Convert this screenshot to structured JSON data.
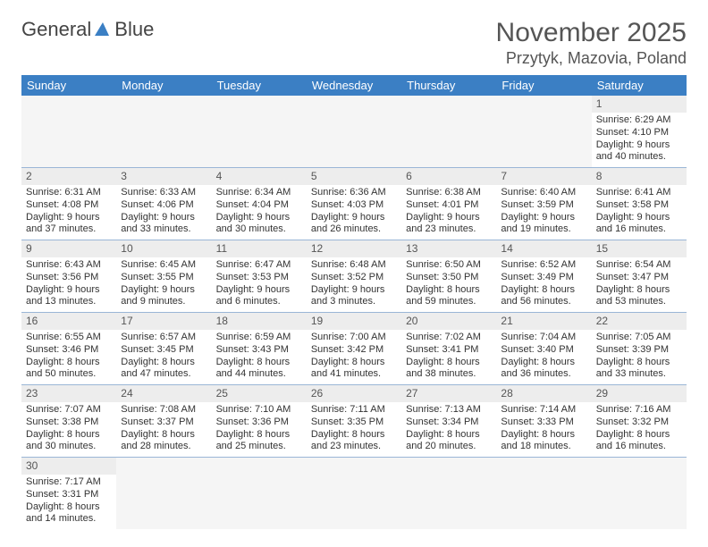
{
  "logo": {
    "word1": "General",
    "word2": "Blue",
    "shape_color": "#3b7fc4"
  },
  "header": {
    "month_title": "November 2025",
    "location": "Przytyk, Mazovia, Poland"
  },
  "colors": {
    "header_bg": "#3b7fc4",
    "header_fg": "#ffffff",
    "row_border": "#9ab6d6",
    "dayhead_bg": "#ededed"
  },
  "day_names": [
    "Sunday",
    "Monday",
    "Tuesday",
    "Wednesday",
    "Thursday",
    "Friday",
    "Saturday"
  ],
  "weeks": [
    [
      null,
      null,
      null,
      null,
      null,
      null,
      {
        "n": "1",
        "sr": "Sunrise: 6:29 AM",
        "ss": "Sunset: 4:10 PM",
        "dl": "Daylight: 9 hours and 40 minutes."
      }
    ],
    [
      {
        "n": "2",
        "sr": "Sunrise: 6:31 AM",
        "ss": "Sunset: 4:08 PM",
        "dl": "Daylight: 9 hours and 37 minutes."
      },
      {
        "n": "3",
        "sr": "Sunrise: 6:33 AM",
        "ss": "Sunset: 4:06 PM",
        "dl": "Daylight: 9 hours and 33 minutes."
      },
      {
        "n": "4",
        "sr": "Sunrise: 6:34 AM",
        "ss": "Sunset: 4:04 PM",
        "dl": "Daylight: 9 hours and 30 minutes."
      },
      {
        "n": "5",
        "sr": "Sunrise: 6:36 AM",
        "ss": "Sunset: 4:03 PM",
        "dl": "Daylight: 9 hours and 26 minutes."
      },
      {
        "n": "6",
        "sr": "Sunrise: 6:38 AM",
        "ss": "Sunset: 4:01 PM",
        "dl": "Daylight: 9 hours and 23 minutes."
      },
      {
        "n": "7",
        "sr": "Sunrise: 6:40 AM",
        "ss": "Sunset: 3:59 PM",
        "dl": "Daylight: 9 hours and 19 minutes."
      },
      {
        "n": "8",
        "sr": "Sunrise: 6:41 AM",
        "ss": "Sunset: 3:58 PM",
        "dl": "Daylight: 9 hours and 16 minutes."
      }
    ],
    [
      {
        "n": "9",
        "sr": "Sunrise: 6:43 AM",
        "ss": "Sunset: 3:56 PM",
        "dl": "Daylight: 9 hours and 13 minutes."
      },
      {
        "n": "10",
        "sr": "Sunrise: 6:45 AM",
        "ss": "Sunset: 3:55 PM",
        "dl": "Daylight: 9 hours and 9 minutes."
      },
      {
        "n": "11",
        "sr": "Sunrise: 6:47 AM",
        "ss": "Sunset: 3:53 PM",
        "dl": "Daylight: 9 hours and 6 minutes."
      },
      {
        "n": "12",
        "sr": "Sunrise: 6:48 AM",
        "ss": "Sunset: 3:52 PM",
        "dl": "Daylight: 9 hours and 3 minutes."
      },
      {
        "n": "13",
        "sr": "Sunrise: 6:50 AM",
        "ss": "Sunset: 3:50 PM",
        "dl": "Daylight: 8 hours and 59 minutes."
      },
      {
        "n": "14",
        "sr": "Sunrise: 6:52 AM",
        "ss": "Sunset: 3:49 PM",
        "dl": "Daylight: 8 hours and 56 minutes."
      },
      {
        "n": "15",
        "sr": "Sunrise: 6:54 AM",
        "ss": "Sunset: 3:47 PM",
        "dl": "Daylight: 8 hours and 53 minutes."
      }
    ],
    [
      {
        "n": "16",
        "sr": "Sunrise: 6:55 AM",
        "ss": "Sunset: 3:46 PM",
        "dl": "Daylight: 8 hours and 50 minutes."
      },
      {
        "n": "17",
        "sr": "Sunrise: 6:57 AM",
        "ss": "Sunset: 3:45 PM",
        "dl": "Daylight: 8 hours and 47 minutes."
      },
      {
        "n": "18",
        "sr": "Sunrise: 6:59 AM",
        "ss": "Sunset: 3:43 PM",
        "dl": "Daylight: 8 hours and 44 minutes."
      },
      {
        "n": "19",
        "sr": "Sunrise: 7:00 AM",
        "ss": "Sunset: 3:42 PM",
        "dl": "Daylight: 8 hours and 41 minutes."
      },
      {
        "n": "20",
        "sr": "Sunrise: 7:02 AM",
        "ss": "Sunset: 3:41 PM",
        "dl": "Daylight: 8 hours and 38 minutes."
      },
      {
        "n": "21",
        "sr": "Sunrise: 7:04 AM",
        "ss": "Sunset: 3:40 PM",
        "dl": "Daylight: 8 hours and 36 minutes."
      },
      {
        "n": "22",
        "sr": "Sunrise: 7:05 AM",
        "ss": "Sunset: 3:39 PM",
        "dl": "Daylight: 8 hours and 33 minutes."
      }
    ],
    [
      {
        "n": "23",
        "sr": "Sunrise: 7:07 AM",
        "ss": "Sunset: 3:38 PM",
        "dl": "Daylight: 8 hours and 30 minutes."
      },
      {
        "n": "24",
        "sr": "Sunrise: 7:08 AM",
        "ss": "Sunset: 3:37 PM",
        "dl": "Daylight: 8 hours and 28 minutes."
      },
      {
        "n": "25",
        "sr": "Sunrise: 7:10 AM",
        "ss": "Sunset: 3:36 PM",
        "dl": "Daylight: 8 hours and 25 minutes."
      },
      {
        "n": "26",
        "sr": "Sunrise: 7:11 AM",
        "ss": "Sunset: 3:35 PM",
        "dl": "Daylight: 8 hours and 23 minutes."
      },
      {
        "n": "27",
        "sr": "Sunrise: 7:13 AM",
        "ss": "Sunset: 3:34 PM",
        "dl": "Daylight: 8 hours and 20 minutes."
      },
      {
        "n": "28",
        "sr": "Sunrise: 7:14 AM",
        "ss": "Sunset: 3:33 PM",
        "dl": "Daylight: 8 hours and 18 minutes."
      },
      {
        "n": "29",
        "sr": "Sunrise: 7:16 AM",
        "ss": "Sunset: 3:32 PM",
        "dl": "Daylight: 8 hours and 16 minutes."
      }
    ],
    [
      {
        "n": "30",
        "sr": "Sunrise: 7:17 AM",
        "ss": "Sunset: 3:31 PM",
        "dl": "Daylight: 8 hours and 14 minutes."
      },
      null,
      null,
      null,
      null,
      null,
      null
    ]
  ]
}
